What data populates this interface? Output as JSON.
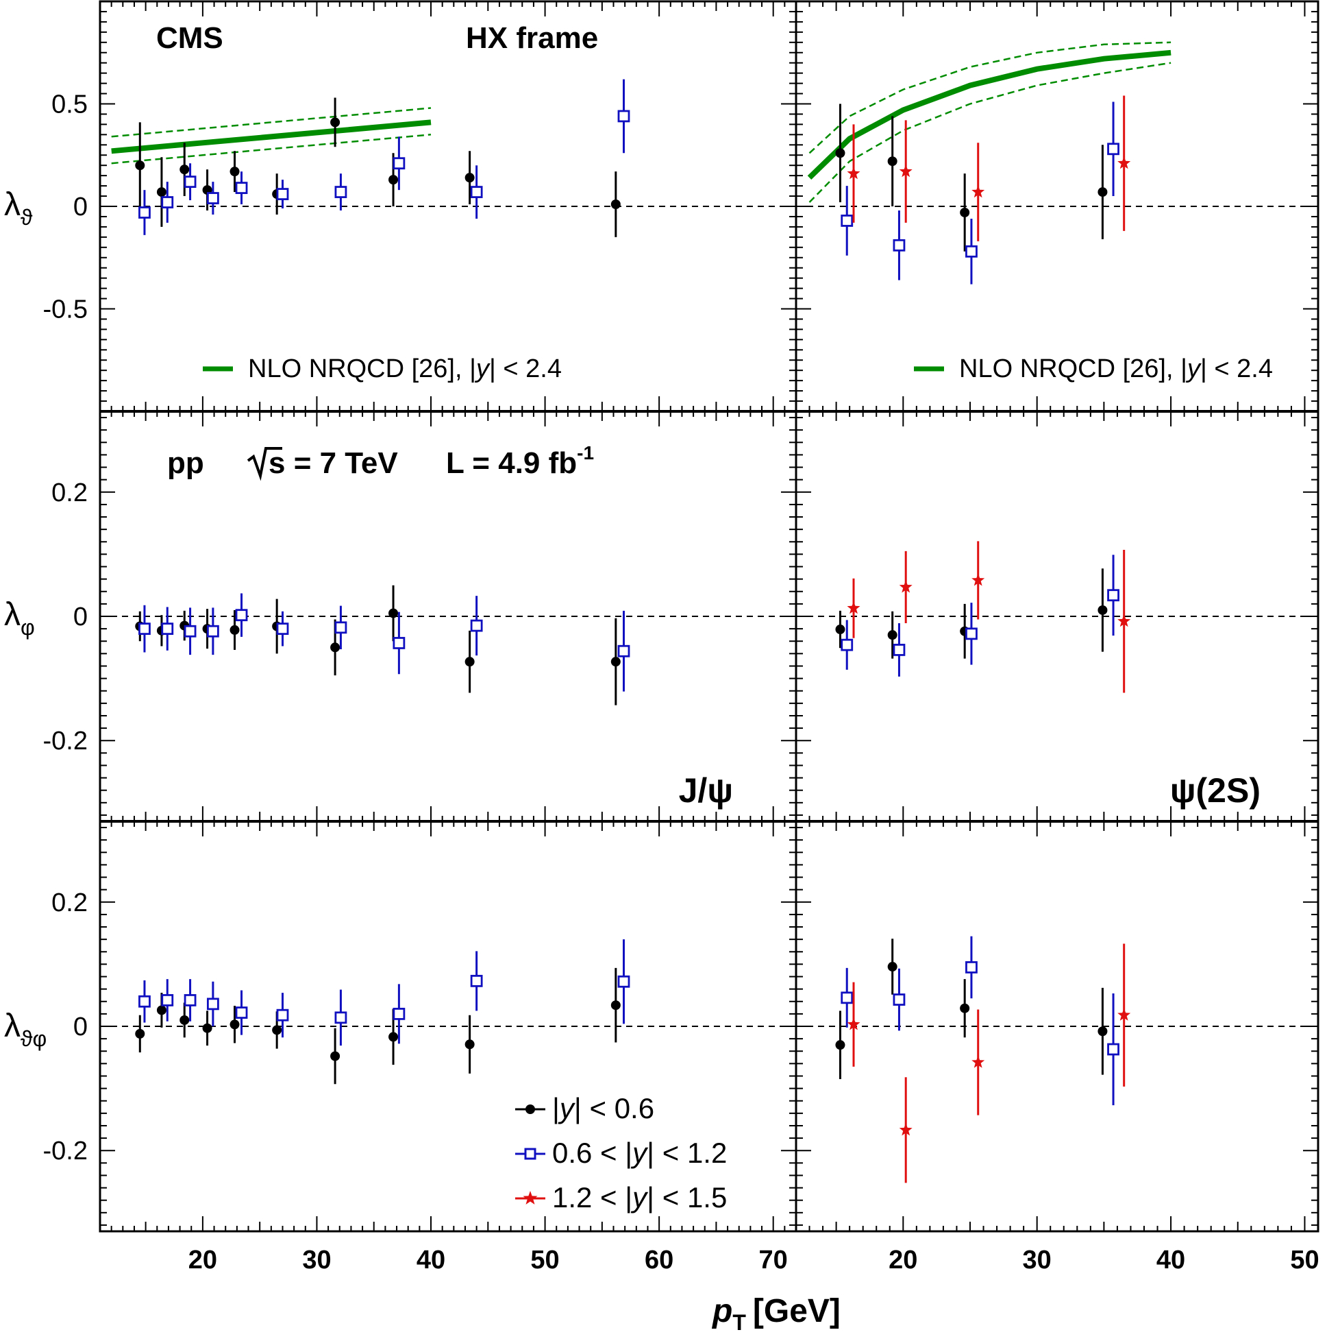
{
  "chart_data": {
    "type": "scatter",
    "title": "CMS",
    "frame_label": "HX frame",
    "collision": {
      "system": "pp",
      "energy": "s = 7 TeV",
      "lumi_prefix": "L = 4.9 fb",
      "lumi_exp": "-1"
    },
    "xlabel": {
      "var": "p",
      "sub": "T",
      "unit": "[GeV]"
    },
    "columns": [
      {
        "particle": "J/ψ",
        "xlim": [
          11,
          72
        ],
        "xticks": [
          20,
          30,
          40,
          50,
          60,
          70
        ]
      },
      {
        "particle": "ψ(2S)",
        "xlim": [
          12,
          51
        ],
        "xticks": [
          20,
          30,
          40,
          50
        ]
      }
    ],
    "rows": [
      {
        "ylabel": "λ",
        "ysub": "ϑ",
        "ylim": [
          -1.0,
          1.0
        ],
        "yticks": [
          0.5,
          0,
          -0.5
        ],
        "yticklabels": [
          "0.5",
          "0",
          "-0.5"
        ]
      },
      {
        "ylabel": "λ",
        "ysub": "φ",
        "ylim": [
          -0.33,
          0.33
        ],
        "yticks": [
          0.2,
          0,
          -0.2
        ],
        "yticklabels": [
          "0.2",
          "0",
          "-0.2"
        ]
      },
      {
        "ylabel": "λ",
        "ysub": "ϑφ",
        "ylim": [
          -0.33,
          0.33
        ],
        "yticks": [
          0.2,
          0,
          -0.2
        ],
        "yticklabels": [
          "0.2",
          "0",
          "-0.2"
        ]
      }
    ],
    "legend": [
      {
        "key": "y06",
        "label_pre": "|",
        "label_var": "y",
        "label_post": "| < 0.6",
        "color": "#000000",
        "marker": "circle"
      },
      {
        "key": "y12",
        "label_pre": "0.6 < |",
        "label_var": "y",
        "label_post": "| < 1.2",
        "color": "#1010c0",
        "marker": "open-square"
      },
      {
        "key": "y15",
        "label_pre": "1.2 < |",
        "label_var": "y",
        "label_post": "| < 1.5",
        "color": "#e01010",
        "marker": "star"
      }
    ],
    "theory": {
      "label_pre": "NLO NRQCD [26], |",
      "label_var": "y",
      "label_post": "| < 2.4",
      "color": "#008c00",
      "jpsi": {
        "x": [
          12,
          20,
          30,
          40
        ],
        "central": [
          0.27,
          0.31,
          0.36,
          0.41
        ],
        "upper": [
          0.34,
          0.38,
          0.43,
          0.48
        ],
        "lower": [
          0.21,
          0.25,
          0.3,
          0.35
        ]
      },
      "psi2s": {
        "x": [
          13,
          16,
          20,
          25,
          30,
          35,
          40
        ],
        "central": [
          0.14,
          0.33,
          0.47,
          0.59,
          0.67,
          0.72,
          0.75
        ],
        "upper": [
          0.26,
          0.44,
          0.57,
          0.68,
          0.75,
          0.79,
          0.8
        ],
        "lower": [
          0.02,
          0.22,
          0.37,
          0.5,
          0.59,
          0.65,
          0.7
        ]
      }
    },
    "series": [
      {
        "col": 0,
        "row": 0,
        "name": "y06",
        "x": [
          14.5,
          16.4,
          18.4,
          20.4,
          22.8,
          26.5,
          31.6,
          36.7,
          43.4,
          56.2
        ],
        "y": [
          0.2,
          0.07,
          0.18,
          0.08,
          0.17,
          0.06,
          0.41,
          0.13,
          0.14,
          0.01
        ],
        "err": [
          0.21,
          0.17,
          0.13,
          0.1,
          0.1,
          0.1,
          0.12,
          0.13,
          0.13,
          0.16
        ]
      },
      {
        "col": 0,
        "row": 0,
        "name": "y12",
        "x": [
          14.9,
          16.9,
          18.9,
          20.9,
          23.4,
          27.0,
          32.1,
          37.2,
          44.0,
          56.9
        ],
        "y": [
          -0.03,
          0.02,
          0.12,
          0.04,
          0.09,
          0.06,
          0.07,
          0.21,
          0.07,
          0.44
        ],
        "err": [
          0.11,
          0.1,
          0.09,
          0.08,
          0.08,
          0.07,
          0.09,
          0.13,
          0.13,
          0.18
        ]
      },
      {
        "col": 0,
        "row": 1,
        "name": "y06",
        "x": [
          14.5,
          16.4,
          18.4,
          20.4,
          22.8,
          26.5,
          31.6,
          36.7,
          43.4,
          56.2
        ],
        "y": [
          -0.016,
          -0.023,
          -0.015,
          -0.02,
          -0.022,
          -0.016,
          -0.05,
          0.005,
          -0.073,
          -0.073
        ],
        "err": [
          0.024,
          0.025,
          0.024,
          0.032,
          0.032,
          0.044,
          0.045,
          0.045,
          0.05,
          0.07
        ]
      },
      {
        "col": 0,
        "row": 1,
        "name": "y12",
        "x": [
          14.9,
          16.9,
          18.9,
          20.9,
          23.4,
          27.0,
          32.1,
          37.2,
          44.0,
          56.9
        ],
        "y": [
          -0.02,
          -0.02,
          -0.024,
          -0.024,
          0.002,
          -0.02,
          -0.018,
          -0.043,
          -0.015,
          -0.056
        ],
        "err": [
          0.038,
          0.035,
          0.038,
          0.038,
          0.035,
          0.028,
          0.035,
          0.05,
          0.048,
          0.065
        ]
      },
      {
        "col": 0,
        "row": 2,
        "name": "y06",
        "x": [
          14.5,
          16.4,
          18.4,
          20.4,
          22.8,
          26.5,
          31.6,
          36.7,
          43.4,
          56.2
        ],
        "y": [
          -0.012,
          0.026,
          0.01,
          -0.003,
          0.003,
          -0.006,
          -0.048,
          -0.017,
          -0.029,
          0.034
        ],
        "err": [
          0.03,
          0.028,
          0.028,
          0.028,
          0.03,
          0.03,
          0.045,
          0.045,
          0.047,
          0.06
        ]
      },
      {
        "col": 0,
        "row": 2,
        "name": "y12",
        "x": [
          14.9,
          16.9,
          18.9,
          20.9,
          23.4,
          27.0,
          32.1,
          37.2,
          44.0,
          56.9
        ],
        "y": [
          0.04,
          0.042,
          0.042,
          0.036,
          0.022,
          0.018,
          0.014,
          0.02,
          0.073,
          0.072
        ],
        "err": [
          0.034,
          0.034,
          0.034,
          0.036,
          0.036,
          0.036,
          0.045,
          0.048,
          0.048,
          0.068
        ]
      },
      {
        "col": 1,
        "row": 0,
        "name": "y06",
        "x": [
          15.3,
          19.2,
          24.6,
          34.9
        ],
        "y": [
          0.26,
          0.22,
          -0.03,
          0.07
        ],
        "err": [
          0.24,
          0.22,
          0.19,
          0.23
        ]
      },
      {
        "col": 1,
        "row": 0,
        "name": "y12",
        "x": [
          15.8,
          19.7,
          25.1,
          35.7
        ],
        "y": [
          -0.07,
          -0.19,
          -0.22,
          0.28
        ],
        "err": [
          0.17,
          0.17,
          0.16,
          0.23
        ]
      },
      {
        "col": 1,
        "row": 0,
        "name": "y15",
        "x": [
          16.3,
          20.2,
          25.6,
          36.5
        ],
        "y": [
          0.16,
          0.17,
          0.07,
          0.21
        ],
        "err": [
          0.24,
          0.25,
          0.24,
          0.33
        ]
      },
      {
        "col": 1,
        "row": 1,
        "name": "y06",
        "x": [
          15.3,
          19.2,
          24.6,
          34.9
        ],
        "y": [
          -0.021,
          -0.03,
          -0.024,
          0.01
        ],
        "err": [
          0.03,
          0.038,
          0.044,
          0.067
        ]
      },
      {
        "col": 1,
        "row": 1,
        "name": "y12",
        "x": [
          15.8,
          19.7,
          25.1,
          35.7
        ],
        "y": [
          -0.046,
          -0.054,
          -0.028,
          0.034
        ],
        "err": [
          0.04,
          0.043,
          0.05,
          0.065
        ]
      },
      {
        "col": 1,
        "row": 1,
        "name": "y15",
        "x": [
          16.3,
          20.2,
          25.6,
          36.5
        ],
        "y": [
          0.013,
          0.047,
          0.058,
          -0.008
        ],
        "err": [
          0.048,
          0.058,
          0.063,
          0.115
        ]
      },
      {
        "col": 1,
        "row": 2,
        "name": "y06",
        "x": [
          15.3,
          19.2,
          24.6,
          34.9
        ],
        "y": [
          -0.03,
          0.096,
          0.029,
          -0.008
        ],
        "err": [
          0.055,
          0.045,
          0.047,
          0.07
        ]
      },
      {
        "col": 1,
        "row": 2,
        "name": "y12",
        "x": [
          15.8,
          19.7,
          25.1,
          35.7
        ],
        "y": [
          0.046,
          0.043,
          0.095,
          -0.037
        ],
        "err": [
          0.048,
          0.05,
          0.05,
          0.09
        ]
      },
      {
        "col": 1,
        "row": 2,
        "name": "y15",
        "x": [
          16.3,
          20.2,
          25.6,
          36.5
        ],
        "y": [
          0.003,
          -0.167,
          -0.058,
          0.018
        ],
        "err": [
          0.068,
          0.085,
          0.085,
          0.115
        ]
      }
    ]
  }
}
